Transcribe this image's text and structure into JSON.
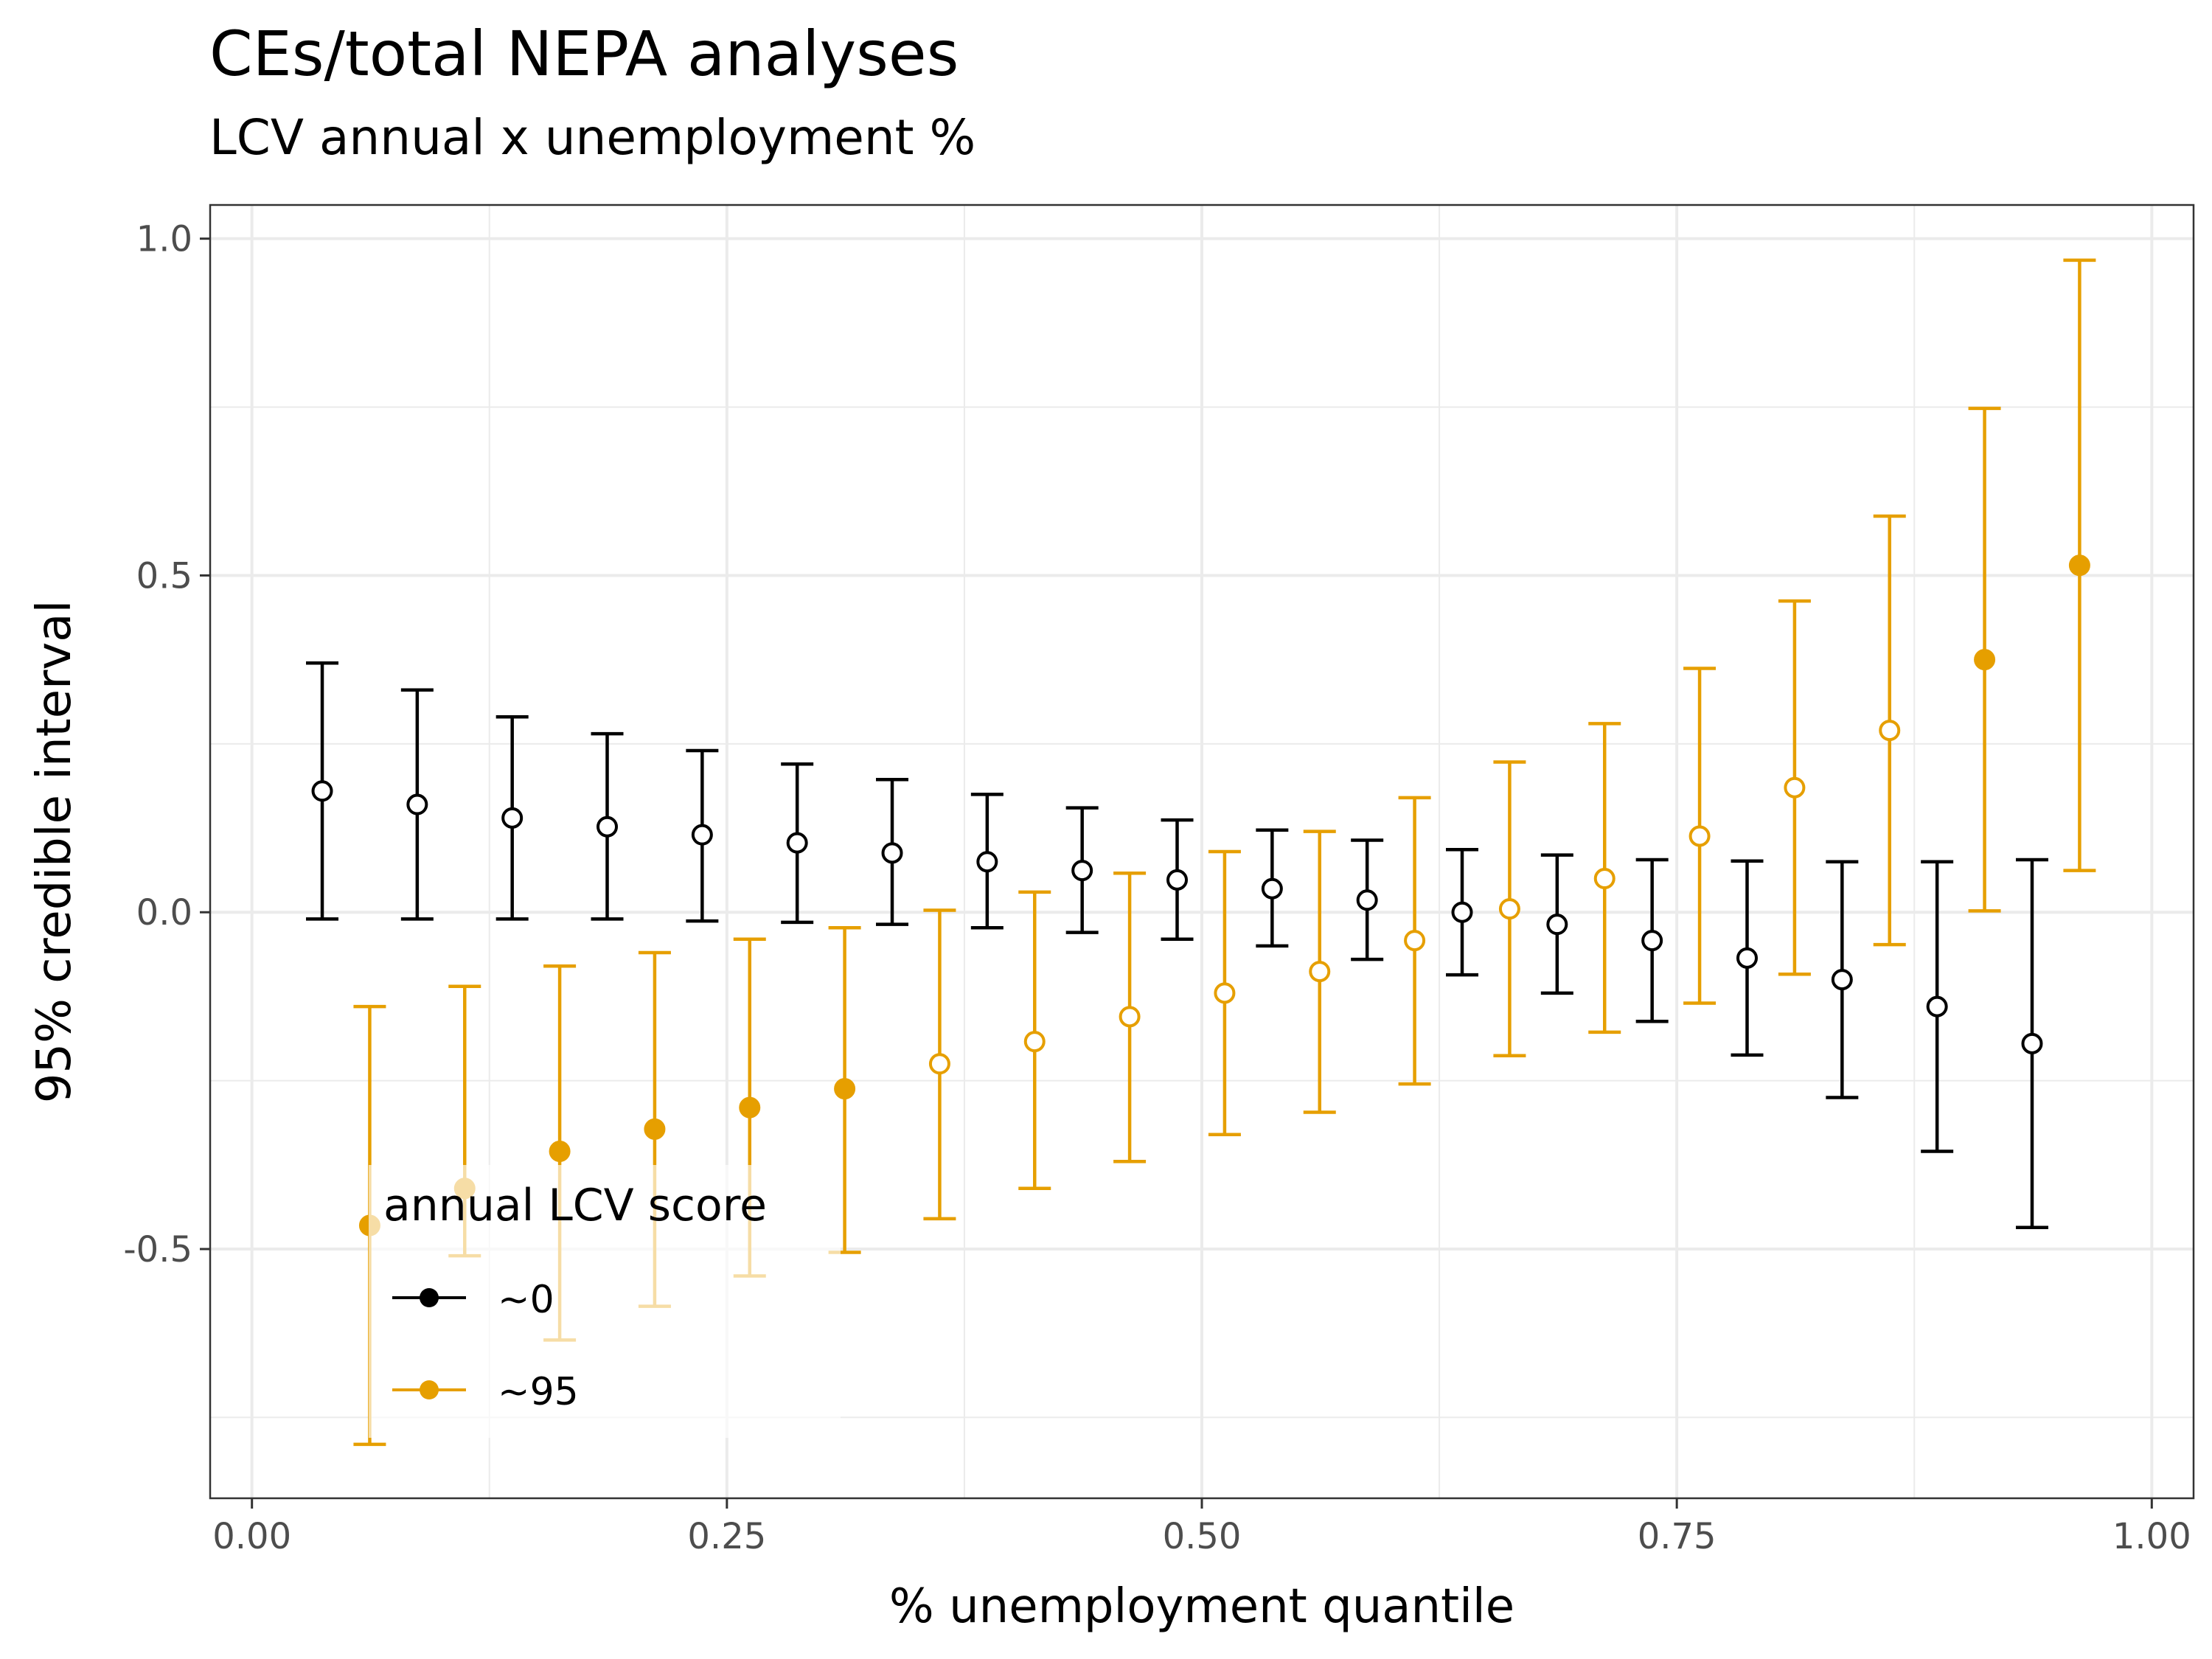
{
  "chart_data": {
    "type": "scatter",
    "title": "CEs/total NEPA analyses",
    "subtitle": "LCV annual x unemployment %",
    "xlabel": "% unemployment quantile",
    "ylabel": "95% credible interval",
    "xlim": [
      -0.022,
      1.022
    ],
    "ylim": [
      -0.87,
      1.05
    ],
    "x_ticks": [
      0,
      0.25,
      0.5,
      0.75,
      1
    ],
    "x_tick_labels": [
      "0.00",
      "0.25",
      "0.50",
      "0.75",
      "1.00"
    ],
    "y_ticks": [
      -0.5,
      0,
      0.5,
      1
    ],
    "y_tick_labels": [
      "-0.5",
      "0.0",
      "0.5",
      "1.0"
    ],
    "grid": true,
    "legend": {
      "title": "annual LCV score",
      "placement": "bottom-left",
      "entries": [
        "~0",
        "~95"
      ]
    },
    "series": [
      {
        "name": "~0",
        "color": "#000000",
        "points": [
          {
            "x": 0.037,
            "y": 0.18,
            "lo": -0.01,
            "hi": 0.37,
            "filled": false
          },
          {
            "x": 0.087,
            "y": 0.16,
            "lo": -0.01,
            "hi": 0.33,
            "filled": false
          },
          {
            "x": 0.137,
            "y": 0.14,
            "lo": -0.01,
            "hi": 0.29,
            "filled": false
          },
          {
            "x": 0.187,
            "y": 0.127,
            "lo": -0.01,
            "hi": 0.265,
            "filled": false
          },
          {
            "x": 0.237,
            "y": 0.115,
            "lo": -0.013,
            "hi": 0.24,
            "filled": false
          },
          {
            "x": 0.287,
            "y": 0.103,
            "lo": -0.015,
            "hi": 0.22,
            "filled": false
          },
          {
            "x": 0.337,
            "y": 0.088,
            "lo": -0.018,
            "hi": 0.197,
            "filled": false
          },
          {
            "x": 0.387,
            "y": 0.075,
            "lo": -0.023,
            "hi": 0.175,
            "filled": false
          },
          {
            "x": 0.437,
            "y": 0.062,
            "lo": -0.03,
            "hi": 0.155,
            "filled": false
          },
          {
            "x": 0.487,
            "y": 0.048,
            "lo": -0.04,
            "hi": 0.137,
            "filled": false
          },
          {
            "x": 0.537,
            "y": 0.035,
            "lo": -0.05,
            "hi": 0.122,
            "filled": false
          },
          {
            "x": 0.587,
            "y": 0.018,
            "lo": -0.07,
            "hi": 0.107,
            "filled": false
          },
          {
            "x": 0.637,
            "y": 0.0,
            "lo": -0.093,
            "hi": 0.093,
            "filled": false
          },
          {
            "x": 0.687,
            "y": -0.018,
            "lo": -0.12,
            "hi": 0.085,
            "filled": false
          },
          {
            "x": 0.737,
            "y": -0.042,
            "lo": -0.162,
            "hi": 0.078,
            "filled": false
          },
          {
            "x": 0.787,
            "y": -0.068,
            "lo": -0.212,
            "hi": 0.076,
            "filled": false
          },
          {
            "x": 0.837,
            "y": -0.1,
            "lo": -0.275,
            "hi": 0.075,
            "filled": false
          },
          {
            "x": 0.887,
            "y": -0.14,
            "lo": -0.355,
            "hi": 0.075,
            "filled": false
          },
          {
            "x": 0.937,
            "y": -0.195,
            "lo": -0.468,
            "hi": 0.078,
            "filled": false
          }
        ]
      },
      {
        "name": "~95",
        "color": "#E69F00",
        "points": [
          {
            "x": 0.062,
            "y": -0.465,
            "lo": -0.79,
            "hi": -0.14,
            "filled": true
          },
          {
            "x": 0.112,
            "y": -0.41,
            "lo": -0.51,
            "hi": -0.11,
            "filled": true
          },
          {
            "x": 0.162,
            "y": -0.355,
            "lo": -0.635,
            "hi": -0.08,
            "filled": true
          },
          {
            "x": 0.212,
            "y": -0.322,
            "lo": -0.585,
            "hi": -0.06,
            "filled": true
          },
          {
            "x": 0.262,
            "y": -0.29,
            "lo": -0.54,
            "hi": -0.04,
            "filled": true
          },
          {
            "x": 0.312,
            "y": -0.262,
            "lo": -0.505,
            "hi": -0.023,
            "filled": true
          },
          {
            "x": 0.362,
            "y": -0.225,
            "lo": -0.455,
            "hi": 0.003,
            "filled": false
          },
          {
            "x": 0.412,
            "y": -0.192,
            "lo": -0.41,
            "hi": 0.03,
            "filled": false
          },
          {
            "x": 0.462,
            "y": -0.155,
            "lo": -0.37,
            "hi": 0.058,
            "filled": false
          },
          {
            "x": 0.512,
            "y": -0.12,
            "lo": -0.33,
            "hi": 0.09,
            "filled": false
          },
          {
            "x": 0.562,
            "y": -0.088,
            "lo": -0.297,
            "hi": 0.12,
            "filled": false
          },
          {
            "x": 0.612,
            "y": -0.042,
            "lo": -0.255,
            "hi": 0.17,
            "filled": false
          },
          {
            "x": 0.662,
            "y": 0.005,
            "lo": -0.213,
            "hi": 0.223,
            "filled": false
          },
          {
            "x": 0.712,
            "y": 0.05,
            "lo": -0.178,
            "hi": 0.28,
            "filled": false
          },
          {
            "x": 0.762,
            "y": 0.113,
            "lo": -0.135,
            "hi": 0.362,
            "filled": false
          },
          {
            "x": 0.812,
            "y": 0.185,
            "lo": -0.092,
            "hi": 0.462,
            "filled": false
          },
          {
            "x": 0.862,
            "y": 0.27,
            "lo": -0.048,
            "hi": 0.588,
            "filled": false
          },
          {
            "x": 0.912,
            "y": 0.375,
            "lo": 0.002,
            "hi": 0.748,
            "filled": true
          },
          {
            "x": 0.962,
            "y": 0.515,
            "lo": 0.062,
            "hi": 0.968,
            "filled": true
          }
        ]
      }
    ]
  }
}
